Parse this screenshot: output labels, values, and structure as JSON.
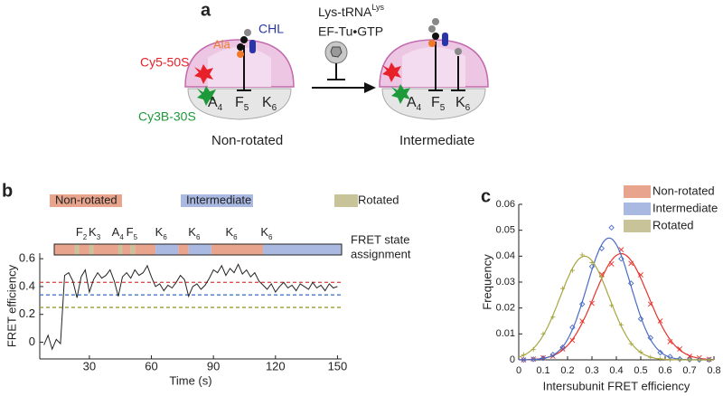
{
  "diagram": {
    "panel": "a",
    "trna": {
      "text": "Lys-tRNA",
      "sup": "Lys"
    },
    "factor": "EF-Tu•GTP",
    "chl": "CHL",
    "ala": "Ala",
    "dye50s": "Cy5-50S",
    "dye30s": "Cy3B-30S",
    "sites_left": [
      {
        "letter": "A",
        "sub": "4"
      },
      {
        "letter": "F",
        "sub": "5"
      },
      {
        "letter": "K",
        "sub": "6"
      }
    ],
    "sites_right": [
      {
        "letter": "A",
        "sub": "4"
      },
      {
        "letter": "F",
        "sub": "5"
      },
      {
        "letter": "K",
        "sub": "6"
      }
    ],
    "state_left": "Non-rotated",
    "state_right": "Intermediate"
  },
  "chart_data": [
    {
      "type": "line",
      "panel": "b",
      "xlabel": "Time (s)",
      "ylabel": "FRET efficiency",
      "color": "#222222",
      "x": [
        8,
        10,
        12,
        14,
        16,
        18,
        20,
        22,
        24,
        26,
        28,
        30,
        32,
        34,
        36,
        38,
        40,
        42,
        44,
        46,
        48,
        50,
        52,
        54,
        56,
        58,
        60,
        62,
        64,
        66,
        68,
        70,
        72,
        74,
        76,
        78,
        80,
        82,
        84,
        86,
        88,
        90,
        92,
        94,
        96,
        98,
        100,
        102,
        104,
        106,
        108,
        110,
        112,
        114,
        116,
        118,
        120,
        122,
        124,
        126,
        128,
        130,
        132,
        134,
        136,
        138,
        140,
        142,
        144,
        146,
        148,
        150
      ],
      "values": [
        -0.02,
        0.05,
        -0.05,
        0.02,
        -0.01,
        0.48,
        0.5,
        0.44,
        0.32,
        0.47,
        0.52,
        0.36,
        0.45,
        0.5,
        0.46,
        0.48,
        0.52,
        0.44,
        0.33,
        0.47,
        0.5,
        0.46,
        0.52,
        0.48,
        0.5,
        0.55,
        0.47,
        0.4,
        0.42,
        0.37,
        0.41,
        0.39,
        0.43,
        0.48,
        0.45,
        0.33,
        0.4,
        0.42,
        0.38,
        0.41,
        0.46,
        0.52,
        0.5,
        0.55,
        0.48,
        0.53,
        0.5,
        0.56,
        0.49,
        0.52,
        0.47,
        0.5,
        0.44,
        0.41,
        0.38,
        0.42,
        0.36,
        0.4,
        0.43,
        0.39,
        0.41,
        0.37,
        0.42,
        0.4,
        0.38,
        0.43,
        0.39,
        0.41,
        0.37,
        0.42,
        0.39,
        0.4
      ],
      "xlim": [
        6,
        152
      ],
      "ylim": [
        -0.12,
        0.64
      ],
      "xticks": [
        30,
        60,
        90,
        120,
        150
      ],
      "yticks": [
        0,
        0.2,
        0.4,
        0.6
      ],
      "reference_lines": [
        {
          "value": 0.43,
          "color": "#e0504a"
        },
        {
          "value": 0.34,
          "color": "#4a78c8"
        },
        {
          "value": 0.25,
          "color": "#9a9a30"
        }
      ],
      "states": [
        {
          "name": "Non-rotated",
          "color": "#e8a48c"
        },
        {
          "name": "Intermediate",
          "color": "#a9b9e2"
        },
        {
          "name": "Rotated",
          "color": "#c9c39a"
        }
      ],
      "state_bar_label": [
        "FRET state",
        "assignment"
      ],
      "state_segments": [
        {
          "start": 13,
          "end": 23,
          "state": "Non-rotated"
        },
        {
          "start": 23,
          "end": 25,
          "state": "Rotated"
        },
        {
          "start": 25,
          "end": 30,
          "state": "Non-rotated"
        },
        {
          "start": 30,
          "end": 32,
          "state": "Rotated"
        },
        {
          "start": 32,
          "end": 44,
          "state": "Non-rotated"
        },
        {
          "start": 44,
          "end": 46,
          "state": "Rotated"
        },
        {
          "start": 46,
          "end": 50,
          "state": "Non-rotated"
        },
        {
          "start": 50,
          "end": 52,
          "state": "Rotated"
        },
        {
          "start": 52,
          "end": 62,
          "state": "Non-rotated"
        },
        {
          "start": 62,
          "end": 73,
          "state": "Intermediate"
        },
        {
          "start": 73,
          "end": 78,
          "state": "Non-rotated"
        },
        {
          "start": 78,
          "end": 89,
          "state": "Intermediate"
        },
        {
          "start": 89,
          "end": 114,
          "state": "Non-rotated"
        },
        {
          "start": 114,
          "end": 152,
          "state": "Intermediate"
        }
      ],
      "events": [
        {
          "letter": "F",
          "sub": "2",
          "x": 25.6
        },
        {
          "letter": "K",
          "sub": "3",
          "x": 31.8
        },
        {
          "letter": "A",
          "sub": "4",
          "x": 43
        },
        {
          "letter": "F",
          "sub": "5",
          "x": 50
        },
        {
          "letter": "K",
          "sub": "6",
          "x": 64
        },
        {
          "letter": "K",
          "sub": "6",
          "x": 80
        },
        {
          "letter": "K",
          "sub": "6",
          "x": 98
        },
        {
          "letter": "K",
          "sub": "6",
          "x": 115
        }
      ]
    },
    {
      "type": "scatter",
      "panel": "c",
      "xlabel": "Intersubunit FRET efficiency",
      "ylabel": "Frequency",
      "xlim": [
        0,
        0.8
      ],
      "ylim": [
        0,
        0.06
      ],
      "xticks": [
        0,
        0.1,
        0.2,
        0.3,
        0.4,
        0.5,
        0.6,
        0.7,
        0.8
      ],
      "yticks": [
        0,
        0.01,
        0.02,
        0.03,
        0.04,
        0.05,
        0.06
      ],
      "x": [
        0.02,
        0.06,
        0.1,
        0.14,
        0.18,
        0.22,
        0.26,
        0.3,
        0.34,
        0.38,
        0.42,
        0.46,
        0.5,
        0.54,
        0.58,
        0.62,
        0.66,
        0.7,
        0.74,
        0.78
      ],
      "series": [
        {
          "name": "Non-rotated",
          "color": "#e8322b",
          "legend_color": "#e8a48c",
          "marker": "x",
          "values": [
            0,
            0.0003,
            0.0008,
            0.0014,
            0.0042,
            0.0075,
            0.015,
            0.0218,
            0.033,
            0.037,
            0.0425,
            0.0372,
            0.0328,
            0.0215,
            0.015,
            0.007,
            0.0042,
            0.0014,
            0.0008,
            0.0002
          ],
          "fit": {
            "mean": 0.42,
            "sd": 0.11,
            "peak": 0.041
          }
        },
        {
          "name": "Intermediate",
          "color": "#4a6cc4",
          "legend_color": "#a9b9e2",
          "marker": "diamond",
          "values": [
            0,
            0.0002,
            0.0006,
            0.002,
            0.0048,
            0.0125,
            0.0215,
            0.036,
            0.043,
            0.051,
            0.039,
            0.0295,
            0.0158,
            0.0085,
            0.0028,
            0.0012,
            0.0003,
            0.0001,
            0,
            0
          ],
          "fit": {
            "mean": 0.37,
            "sd": 0.09,
            "peak": 0.047
          }
        },
        {
          "name": "Rotated",
          "color": "#a8a640",
          "legend_color": "#c9c39a",
          "marker": "plus",
          "values": [
            0.002,
            0.004,
            0.01,
            0.0165,
            0.0275,
            0.0345,
            0.0405,
            0.0375,
            0.032,
            0.021,
            0.0135,
            0.0062,
            0.003,
            0.001,
            0.0004,
            0.0001,
            0,
            0,
            0,
            0
          ],
          "fit": {
            "mean": 0.27,
            "sd": 0.1,
            "peak": 0.04
          }
        }
      ]
    }
  ]
}
